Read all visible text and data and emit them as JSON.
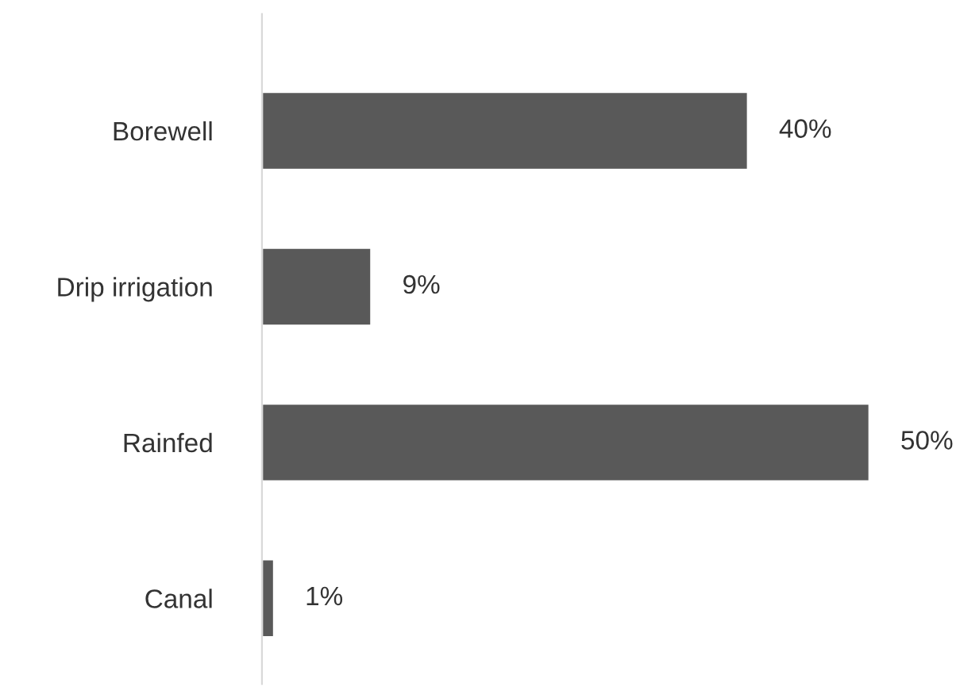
{
  "chart_data": {
    "type": "bar",
    "orientation": "horizontal",
    "categories": [
      "Borewell",
      "Drip irrigation",
      "Rainfed",
      "Canal"
    ],
    "values": [
      40,
      9,
      50,
      1
    ],
    "value_labels": [
      "40%",
      "9%",
      "50%",
      "1%"
    ],
    "color": "#595959",
    "grid": false,
    "legend": false
  }
}
